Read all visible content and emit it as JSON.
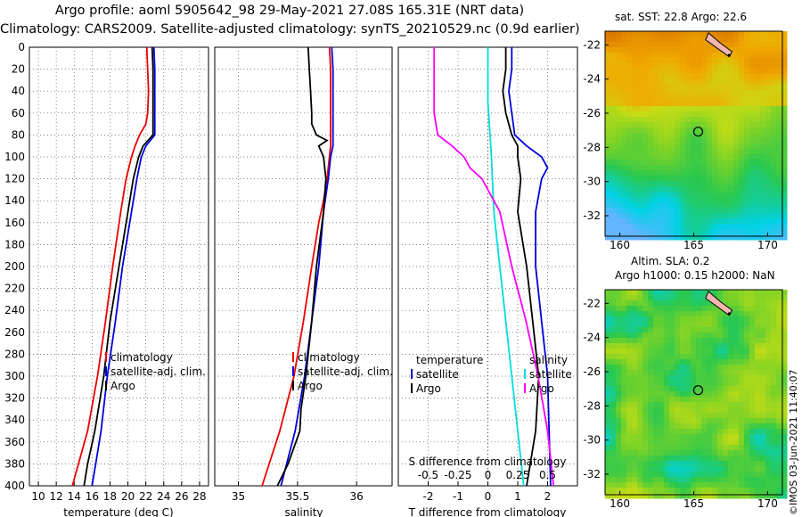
{
  "header": {
    "title_line1": "Argo profile: aoml 5905642_98 29-May-2021 27.08S 165.31E (NRT data)",
    "title_line2": "Climatology: CARS2009. Satellite-adjusted climatology: synTS_20210529.nc (0.9d earlier)"
  },
  "watermark": "©IMOS 03-Jun-2021 11:40:07",
  "colors": {
    "climatology": "#ee0000",
    "satellite": "#0000dd",
    "argo": "#000000",
    "temp_diff": "#ff00ff",
    "sal_diff": "#00dddd"
  },
  "chart_data": [
    {
      "type": "line",
      "id": "temperature",
      "xlabel": "temperature (deg C)",
      "ylabel": "",
      "xlim": [
        9,
        29
      ],
      "ylim": [
        400,
        0
      ],
      "xticks": [
        "10",
        "12",
        "14",
        "16",
        "18",
        "20",
        "22",
        "24",
        "26",
        "28"
      ],
      "xtick_values": [
        10,
        12,
        14,
        16,
        18,
        20,
        22,
        24,
        26,
        28
      ],
      "yticks": [
        "0",
        "20",
        "40",
        "60",
        "80",
        "100",
        "120",
        "140",
        "160",
        "180",
        "200",
        "220",
        "240",
        "260",
        "280",
        "300",
        "320",
        "340",
        "360",
        "380",
        "400"
      ],
      "legend": [
        "climatology",
        "satellite-adj. clim.",
        "Argo"
      ],
      "series": [
        {
          "name": "climatology",
          "depth": [
            0,
            20,
            40,
            60,
            70,
            80,
            90,
            100,
            120,
            150,
            200,
            250,
            300,
            350,
            400
          ],
          "values": [
            22.1,
            22.2,
            22.3,
            22.2,
            22.0,
            21.3,
            20.8,
            20.4,
            19.8,
            19.2,
            18.3,
            17.5,
            16.6,
            15.5,
            13.8
          ]
        },
        {
          "name": "satellite-adj. clim.",
          "depth": [
            0,
            20,
            40,
            60,
            80,
            90,
            100,
            120,
            150,
            200,
            250,
            300,
            350,
            380,
            400
          ],
          "values": [
            22.9,
            23.0,
            23.0,
            23.0,
            23.0,
            22.0,
            21.5,
            21.0,
            20.4,
            19.4,
            18.6,
            17.7,
            17.0,
            16.4,
            16.0
          ]
        },
        {
          "name": "Argo",
          "depth": [
            0,
            20,
            40,
            60,
            80,
            90,
            100,
            120,
            150,
            200,
            250,
            300,
            350,
            380,
            400
          ],
          "values": [
            22.7,
            22.8,
            22.8,
            22.8,
            22.8,
            21.7,
            21.2,
            20.6,
            20.0,
            19.0,
            18.0,
            17.3,
            16.3,
            15.5,
            15.1
          ]
        }
      ]
    },
    {
      "type": "line",
      "id": "salinity",
      "xlabel": "salinity",
      "ylabel": "",
      "xlim": [
        34.8,
        36.3
      ],
      "ylim": [
        400,
        0
      ],
      "xticks": [
        "35",
        "35.5",
        "36"
      ],
      "xtick_values": [
        35,
        35.5,
        36
      ],
      "legend": [
        "climatology",
        "satellite-adj. clim.",
        "Argo"
      ],
      "series": [
        {
          "name": "climatology",
          "depth": [
            0,
            20,
            40,
            60,
            80,
            90,
            100,
            120,
            140,
            160,
            200,
            250,
            300,
            350,
            400
          ],
          "values": [
            35.77,
            35.78,
            35.78,
            35.78,
            35.78,
            35.78,
            35.77,
            35.75,
            35.72,
            35.68,
            35.62,
            35.55,
            35.47,
            35.35,
            35.2
          ]
        },
        {
          "name": "satellite-adj. clim.",
          "depth": [
            0,
            20,
            40,
            60,
            80,
            90,
            100,
            120,
            150,
            200,
            250,
            300,
            350,
            400
          ],
          "values": [
            35.79,
            35.8,
            35.8,
            35.8,
            35.8,
            35.8,
            35.78,
            35.76,
            35.72,
            35.68,
            35.62,
            35.56,
            35.48,
            35.36
          ]
        },
        {
          "name": "Argo",
          "depth": [
            0,
            20,
            40,
            60,
            70,
            80,
            85,
            90,
            100,
            120,
            150,
            200,
            250,
            300,
            330,
            350,
            380,
            400
          ],
          "values": [
            35.59,
            35.6,
            35.61,
            35.62,
            35.62,
            35.66,
            35.75,
            35.68,
            35.72,
            35.74,
            35.72,
            35.66,
            35.62,
            35.57,
            35.53,
            35.52,
            35.42,
            35.33
          ]
        }
      ]
    },
    {
      "type": "line",
      "id": "difference",
      "xlabel": "T difference from climatology",
      "xlabel2": "S difference from climatology",
      "xlim": [
        -3,
        3
      ],
      "ylim": [
        400,
        0
      ],
      "xticks": [
        "-2",
        "-1",
        "0",
        "1",
        "2"
      ],
      "xtick_values": [
        -2,
        -1,
        0,
        1,
        2
      ],
      "xticks2": [
        "-0.5",
        "-0.25",
        "0",
        "0.25",
        "0.5"
      ],
      "xtick2_values": [
        -2,
        -1,
        0,
        1,
        2
      ],
      "legend_left": [
        "temperature",
        "satellite",
        "Argo"
      ],
      "legend_right": [
        "salinity",
        "satellite",
        "Argo"
      ],
      "series": [
        {
          "name": "temperature satellite",
          "depth": [
            0,
            20,
            40,
            60,
            80,
            90,
            100,
            110,
            120,
            150,
            200,
            300,
            400
          ],
          "values": [
            0.8,
            0.8,
            0.7,
            0.8,
            0.9,
            1.3,
            1.8,
            2.0,
            1.8,
            1.6,
            1.6,
            2.0,
            2.1
          ]
        },
        {
          "name": "temperature Argo",
          "depth": [
            0,
            20,
            40,
            60,
            80,
            90,
            100,
            120,
            150,
            200,
            250,
            300,
            350,
            400
          ],
          "values": [
            0.6,
            0.6,
            0.5,
            0.6,
            0.8,
            1.0,
            1.0,
            1.1,
            1.0,
            1.3,
            1.5,
            1.7,
            1.6,
            1.3
          ]
        },
        {
          "name": "salinity satellite",
          "depth": [
            0,
            50,
            100,
            150,
            200,
            250,
            300,
            350,
            400
          ],
          "values": [
            0.0,
            0.0,
            0.03,
            0.05,
            0.1,
            0.15,
            0.2,
            0.25,
            0.3
          ]
        },
        {
          "name": "salinity Argo",
          "depth": [
            0,
            20,
            40,
            60,
            80,
            90,
            100,
            110,
            120,
            150,
            200,
            250,
            300,
            350,
            400
          ],
          "values": [
            -0.45,
            -0.45,
            -0.45,
            -0.45,
            -0.42,
            -0.3,
            -0.2,
            -0.15,
            -0.05,
            0.1,
            0.2,
            0.32,
            0.42,
            0.5,
            0.55
          ]
        }
      ]
    },
    {
      "type": "heatmap",
      "id": "map-sst",
      "title": "sat. SST: 22.8 Argo: 22.6",
      "xticks": [
        "160",
        "165",
        "170"
      ],
      "yticks": [
        "-22",
        "-24",
        "-26",
        "-28",
        "-30",
        "-32"
      ],
      "xlim": [
        159,
        171
      ],
      "ylim": [
        -33.2,
        -21.2
      ],
      "marker": [
        165.3,
        -27.08
      ]
    },
    {
      "type": "heatmap",
      "id": "map-sla",
      "title_line1": "Altim. SLA: 0.2",
      "title_line2": "Argo h1000: 0.15 h2000: NaN",
      "xticks": [
        "160",
        "165",
        "170"
      ],
      "yticks": [
        "-22",
        "-24",
        "-26",
        "-28",
        "-30",
        "-32"
      ],
      "xlim": [
        159,
        171
      ],
      "ylim": [
        -33.2,
        -21.2
      ],
      "marker": [
        165.3,
        -27.08
      ]
    }
  ]
}
